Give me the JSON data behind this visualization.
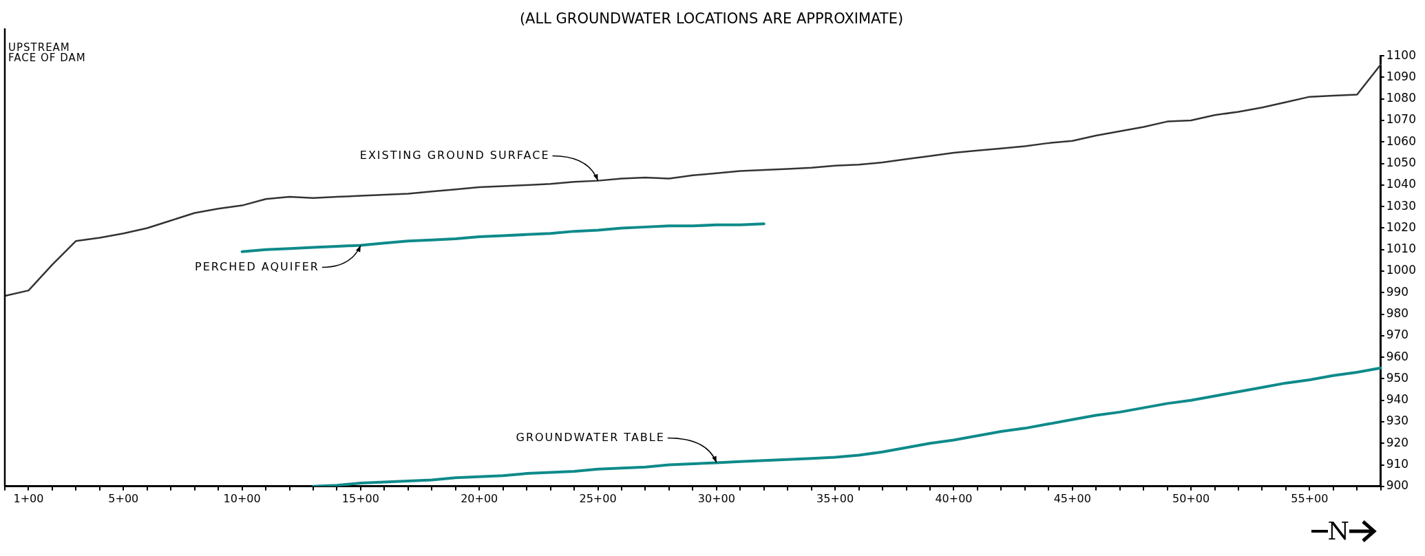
{
  "chart_data": {
    "type": "line",
    "title": "(ALL GROUNDWATER LOCATIONS ARE APPROXIMATE)",
    "categories": [
      null,
      "1+00",
      null,
      null,
      null,
      "5+00",
      null,
      null,
      null,
      null,
      "10+00",
      null,
      null,
      null,
      null,
      "15+00",
      null,
      null,
      null,
      null,
      "20+00",
      null,
      null,
      null,
      null,
      "25+00",
      null,
      null,
      null,
      null,
      "30+00",
      null,
      null,
      null,
      null,
      "35+00",
      null,
      null,
      null,
      null,
      "40+00",
      null,
      null,
      null,
      null,
      "45+00",
      null,
      null,
      null,
      null,
      "50+00",
      null,
      null,
      null,
      null,
      "55+00",
      null,
      null,
      null
    ],
    "ylim": [
      900,
      1100
    ],
    "yticks": [
      900,
      910,
      920,
      930,
      940,
      950,
      960,
      970,
      980,
      990,
      1000,
      1010,
      1020,
      1030,
      1040,
      1050,
      1060,
      1070,
      1080,
      1090,
      1100
    ],
    "grid": false,
    "legend": false,
    "marker": "none",
    "line_style": "solid",
    "series": [
      {
        "color": "#333333",
        "values": [
          988.5,
          991,
          1003,
          1014,
          1015.5,
          1017.5,
          1020,
          1023.5,
          1027,
          1029,
          1030.5,
          1033.5,
          1034.5,
          1034,
          1034.5,
          1035,
          1035.5,
          1036,
          1037,
          1038,
          1039,
          1039.5,
          1040,
          1040.5,
          1041.5,
          1042,
          1043,
          1043.5,
          1043,
          1044.5,
          1045.5,
          1046.5,
          1047,
          1047.5,
          1048,
          1049,
          1049.5,
          1050.5,
          1052,
          1053.5,
          1055,
          1056,
          1057,
          1058,
          1059.5,
          1060.5,
          1063,
          1065,
          1067,
          1069.5,
          1070,
          1072.5,
          1074,
          1076,
          1078.5,
          1081,
          1081.5,
          1082,
          1096
        ]
      },
      {
        "color": "#0e8a8a",
        "values": [
          null,
          null,
          null,
          null,
          null,
          null,
          null,
          null,
          null,
          null,
          1009,
          1010,
          1010.5,
          1011,
          1011.5,
          1012,
          1013,
          1014,
          1014.5,
          1015,
          1016,
          1016.5,
          1017,
          1017.5,
          1018.5,
          1019,
          1020,
          1020.5,
          1021,
          1021,
          1021.5,
          1021.5,
          1022,
          null,
          null,
          null,
          null,
          null,
          null,
          null,
          null,
          null,
          null,
          null,
          null,
          null,
          null,
          null,
          null,
          null,
          null,
          null,
          null,
          null,
          null,
          null,
          null,
          null,
          null
        ]
      },
      {
        "color": "#0e8a8a",
        "values": [
          null,
          null,
          null,
          null,
          null,
          null,
          null,
          null,
          null,
          null,
          null,
          null,
          null,
          900,
          900.5,
          901.5,
          902,
          902.5,
          903,
          904,
          904.5,
          905,
          906,
          906.5,
          907,
          908,
          908.5,
          909,
          910,
          910.5,
          911,
          911.5,
          912,
          912.5,
          913,
          913.5,
          914.5,
          916,
          918,
          920,
          921.5,
          923.5,
          925.5,
          927,
          929,
          931,
          933,
          934.5,
          936.5,
          938.5,
          940,
          942,
          944,
          946,
          948,
          949.5,
          951.5,
          953,
          955
        ]
      }
    ],
    "annotations": [
      "UPSTREAM\nFACE OF DAM",
      "N",
      {
        "text": "EXISTING GROUND SURFACE",
        "x": "25+00",
        "y": 1042
      },
      {
        "text": "PERCHED AQUIFER",
        "x": "15+00",
        "y": 1012
      },
      {
        "text": "GROUNDWATER TABLE",
        "x": "30+00",
        "y": 911
      }
    ]
  }
}
